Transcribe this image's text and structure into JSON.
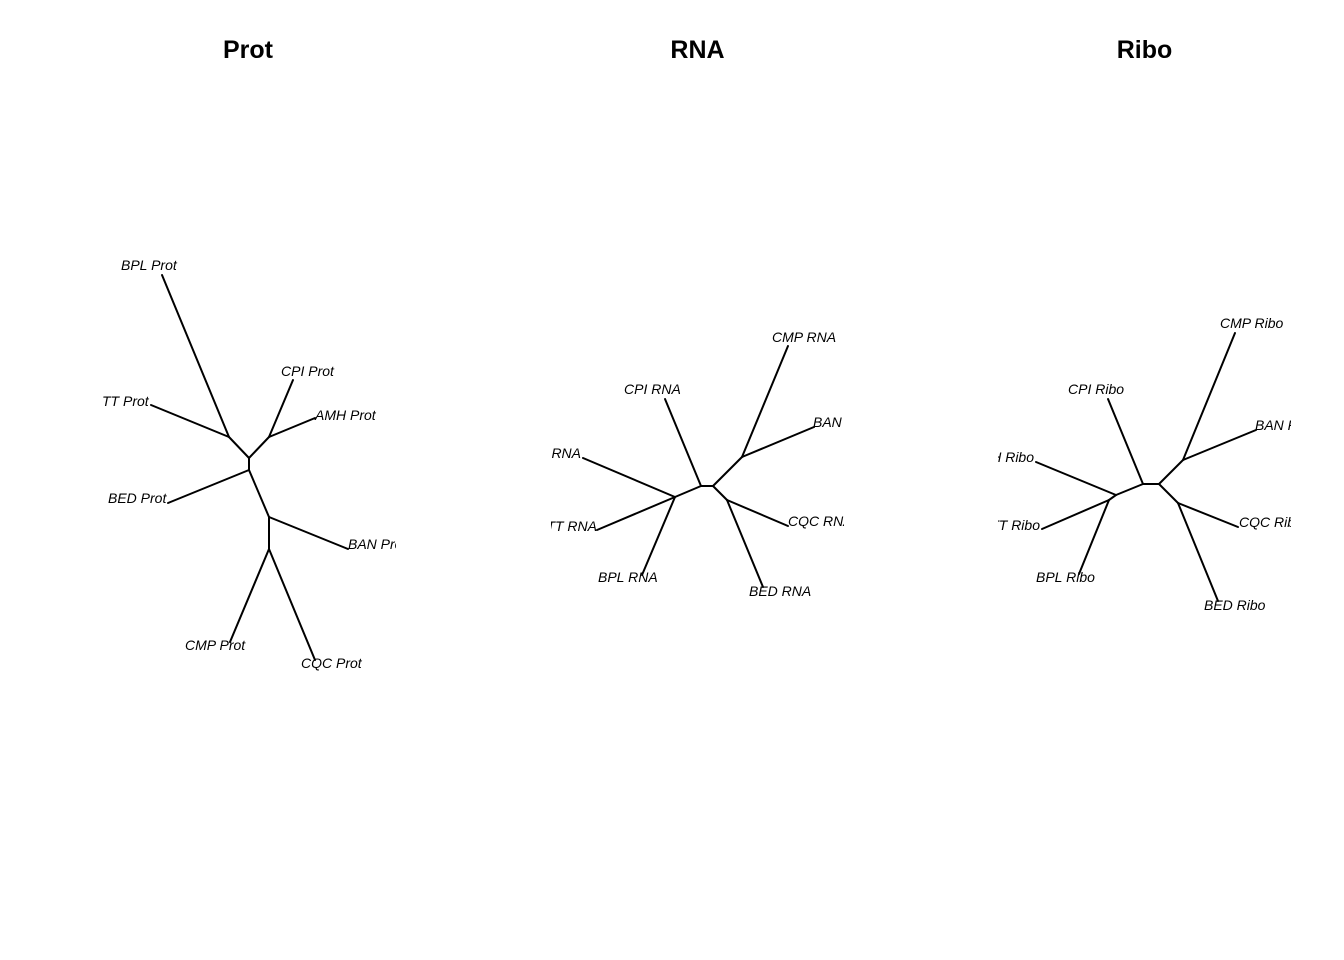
{
  "panels": [
    {
      "title": "Prot",
      "tips": [
        "BPL Prot",
        "CPI Prot",
        "AMH Prot",
        "TT Prot",
        "BED Prot",
        "BAN Prot",
        "CMP Prot",
        "CQC Prot"
      ]
    },
    {
      "title": "RNA",
      "tips": [
        "CMP RNA",
        "CPI RNA",
        "BAN RNA",
        "AMH RNA",
        "TT RNA",
        "CQC RNA",
        "BPL RNA",
        "BED RNA"
      ]
    },
    {
      "title": "Ribo",
      "tips": [
        "CMP Ribo",
        "CPI Ribo",
        "BAN Ribo",
        "AMH Ribo",
        "TT Ribo",
        "CQC Ribo",
        "BPL Ribo",
        "BED Ribo"
      ]
    }
  ]
}
